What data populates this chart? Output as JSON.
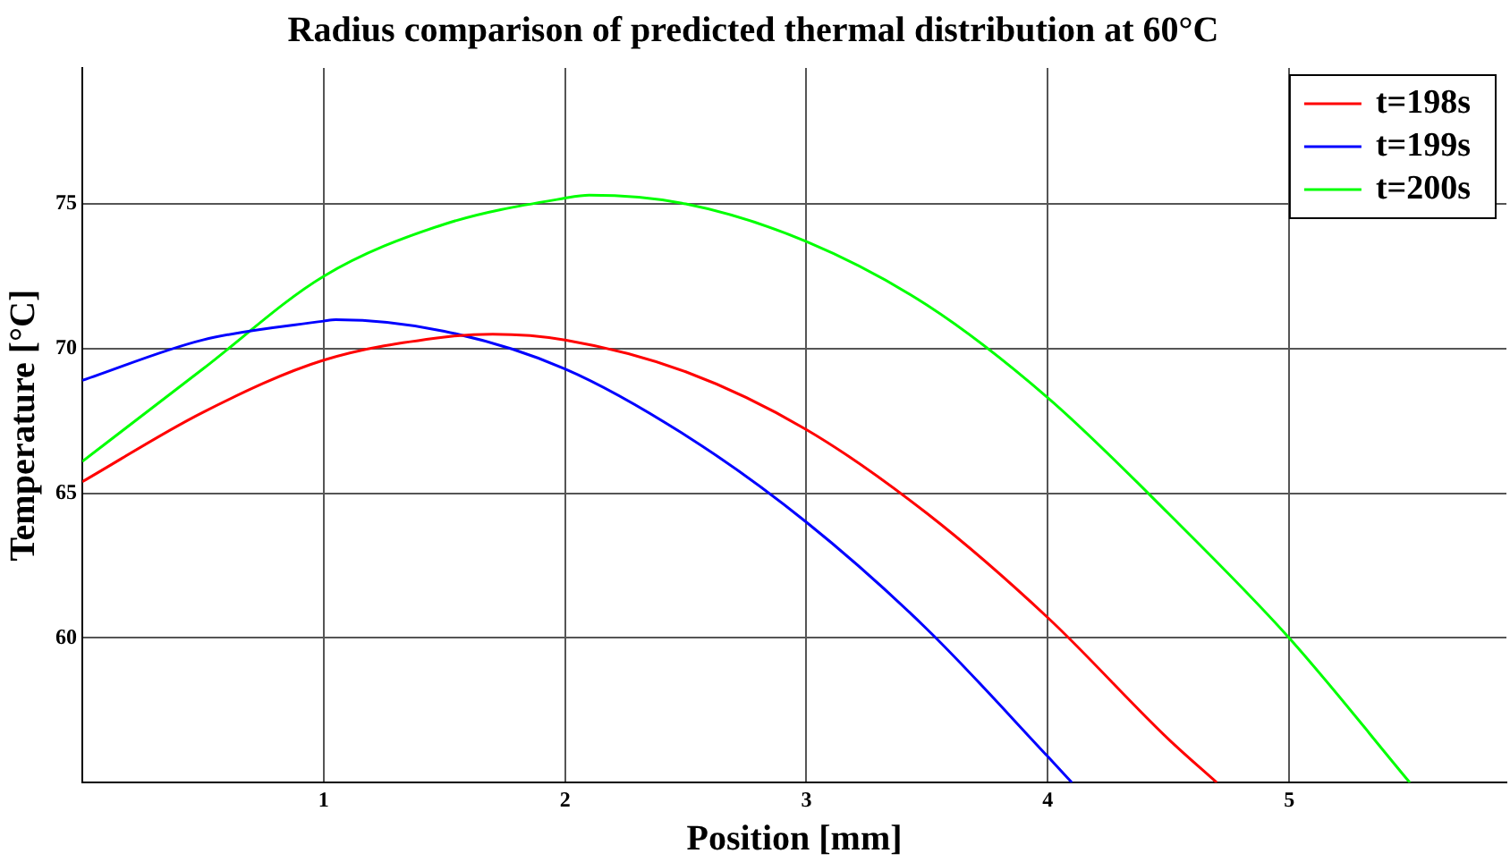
{
  "chart_data": {
    "type": "line",
    "title": "Radius comparison of predicted thermal distribution at 60°C",
    "xlabel": "Position [mm]",
    "ylabel": "Temperature [°C]",
    "xlim": [
      0,
      5.9
    ],
    "xticks": [
      1,
      2,
      3,
      4,
      5
    ],
    "ylim": [
      55,
      79.7
    ],
    "yticks": [
      60,
      65,
      70,
      75
    ],
    "grid": true,
    "legend": "top right",
    "marker": "none",
    "line_style": "solid",
    "series": [
      {
        "name": "t=198s",
        "color": "#ff0000",
        "x": [
          0,
          0.5,
          1,
          1.5,
          1.7,
          2,
          2.5,
          3,
          3.5,
          4,
          4.5,
          4.7
        ],
        "values": [
          65.4,
          67.8,
          69.6,
          70.4,
          70.5,
          70.3,
          69.2,
          67.2,
          64.3,
          60.7,
          56.5,
          55
        ]
      },
      {
        "name": "t=199s",
        "color": "#0000ff",
        "x": [
          0,
          0.5,
          1,
          1.05,
          1.5,
          2,
          2.5,
          3,
          3.5,
          4,
          4.1
        ],
        "values": [
          68.9,
          70.3,
          70.95,
          71.0,
          70.6,
          69.3,
          67.0,
          64.0,
          60.3,
          55.9,
          55
        ]
      },
      {
        "name": "t=200s",
        "color": "#00ff00",
        "x": [
          0,
          0.5,
          1,
          1.5,
          2,
          2.1,
          2.5,
          3,
          3.5,
          4,
          4.5,
          5,
          5.5
        ],
        "values": [
          66.1,
          69.3,
          72.5,
          74.3,
          75.2,
          75.3,
          75.0,
          73.7,
          71.5,
          68.3,
          64.3,
          60,
          55
        ]
      }
    ]
  }
}
